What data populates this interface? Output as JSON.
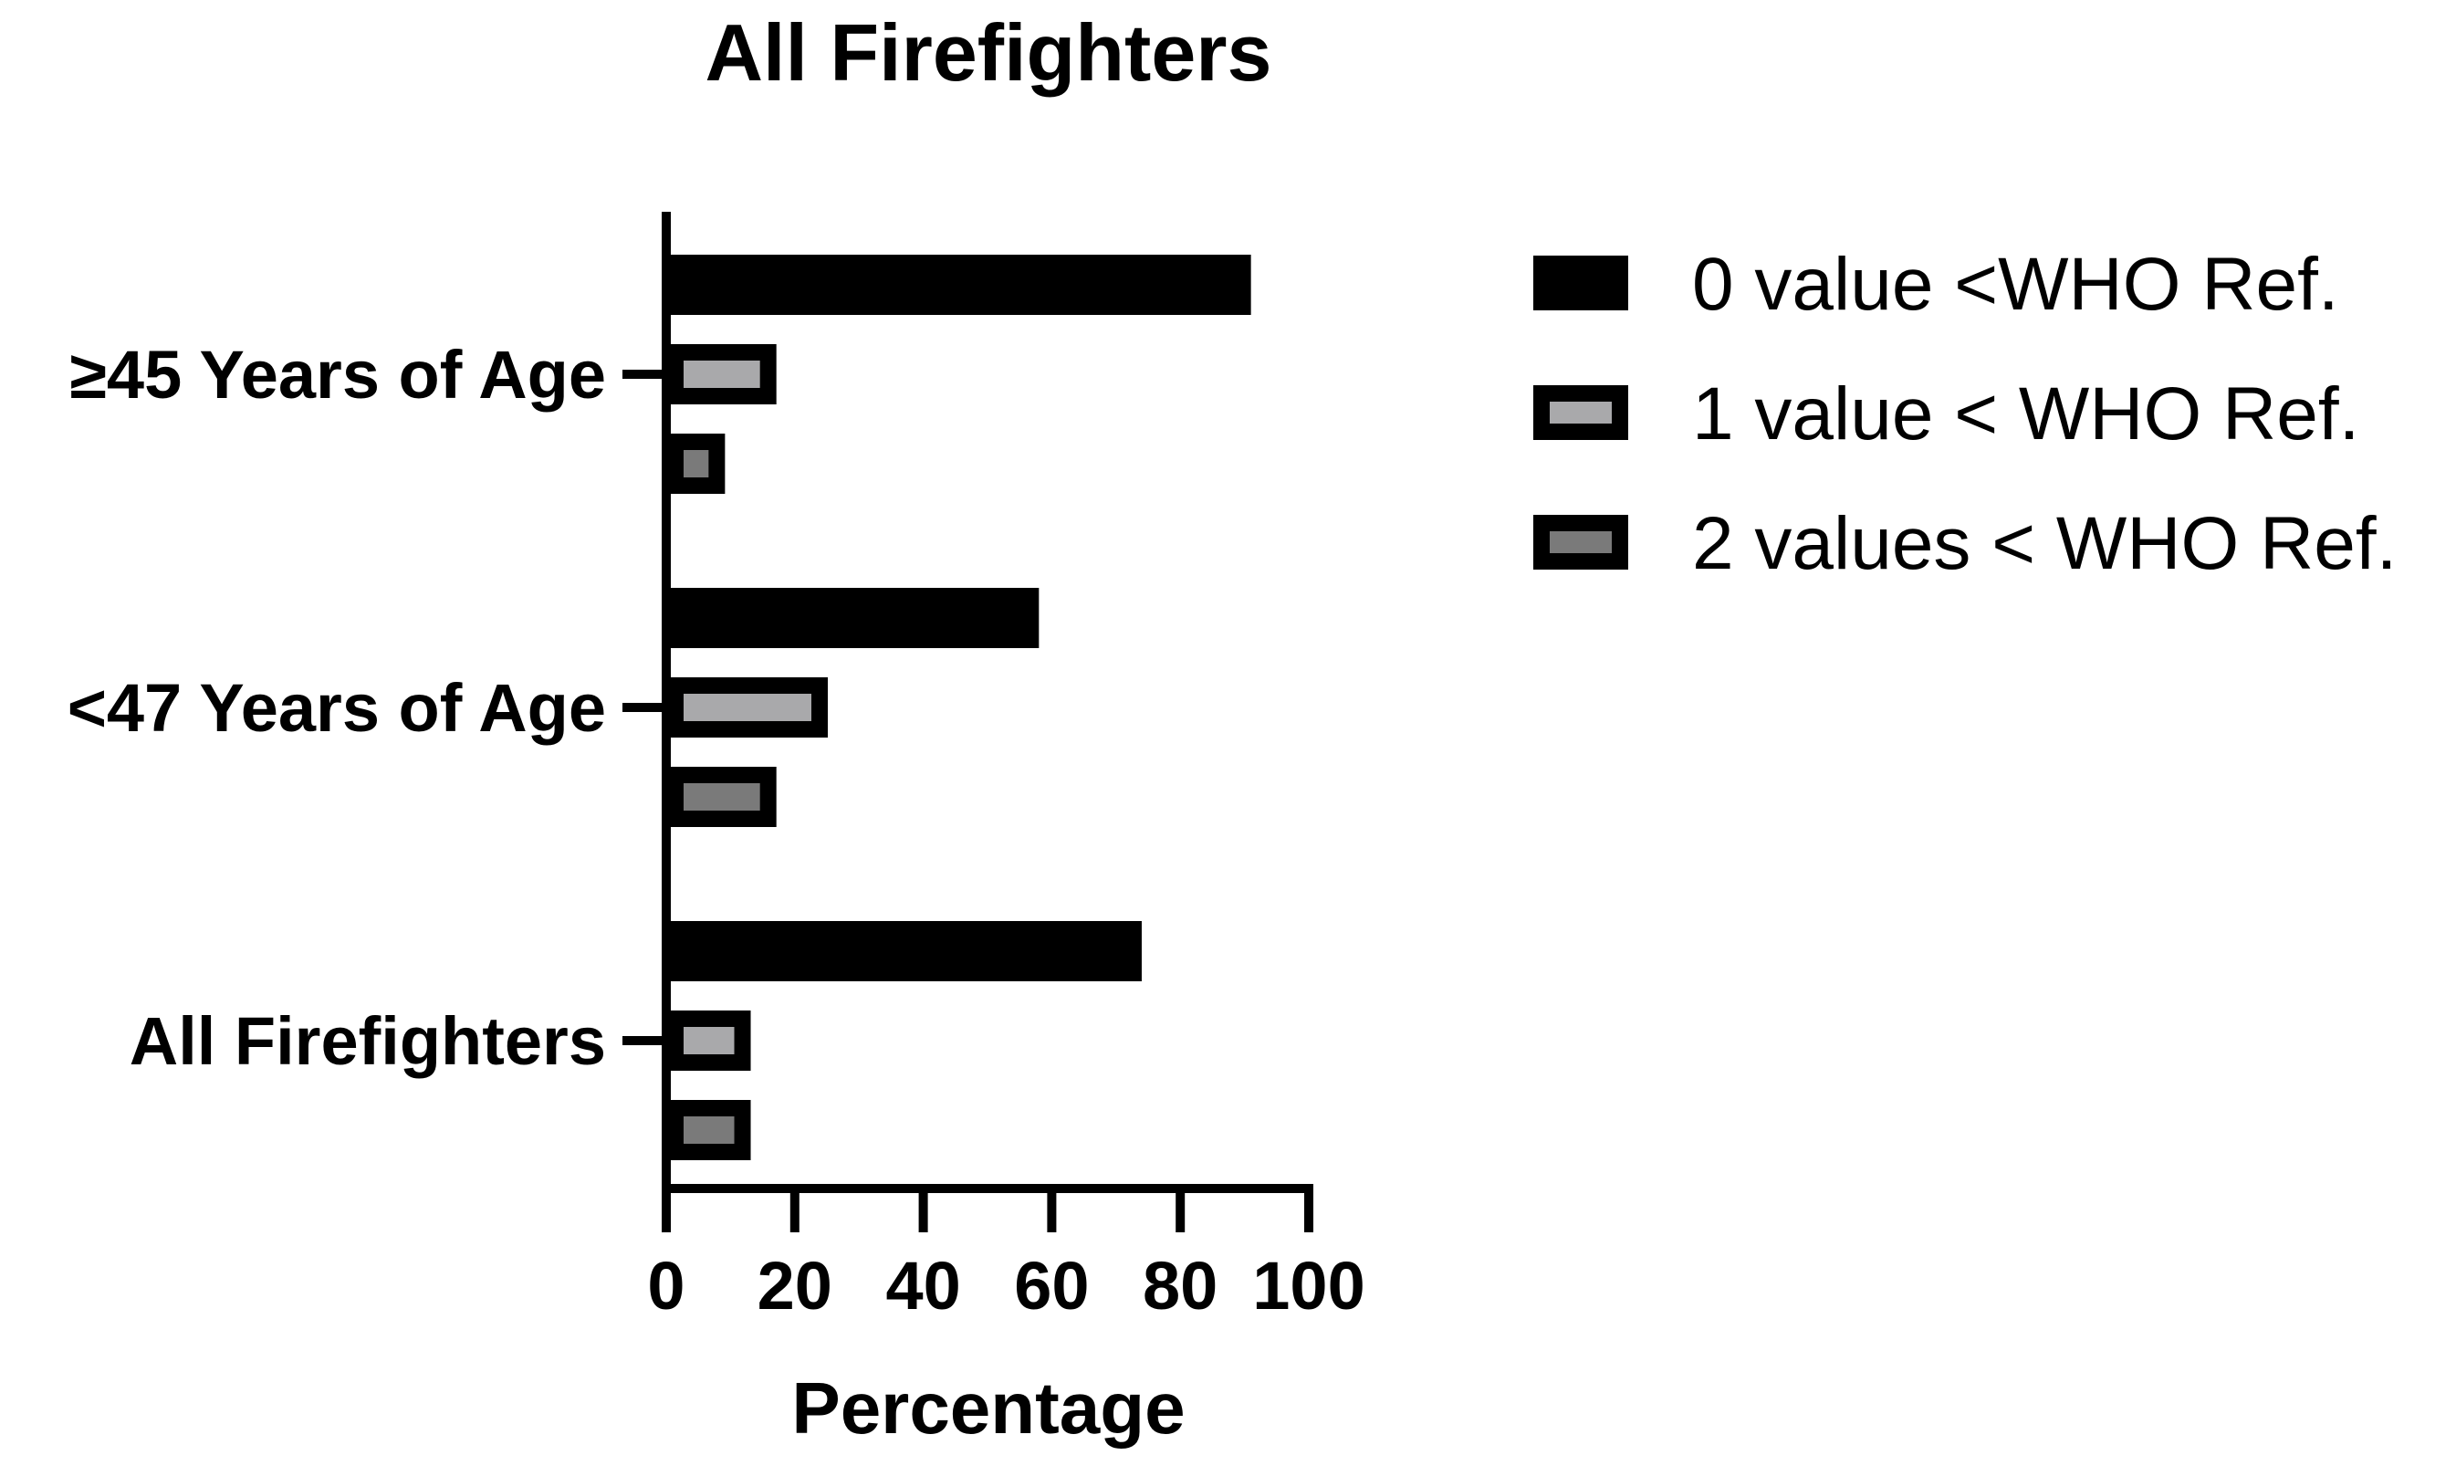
{
  "chart_data": {
    "type": "bar",
    "orientation": "horizontal",
    "title": "All Firefighters",
    "xlabel": "Percentage",
    "ylabel": "",
    "xlim": [
      0,
      100
    ],
    "x_ticks": [
      "0",
      "20",
      "40",
      "60",
      "80",
      "100"
    ],
    "categories": [
      "≥45 Years of Age",
      "<47 Years of Age",
      "All Firefighters"
    ],
    "series": [
      {
        "name": "0 value <WHO Ref.",
        "values": [
          91,
          58,
          74
        ],
        "color": "#000000"
      },
      {
        "name": "1 value < WHO Ref.",
        "values": [
          17,
          25,
          13
        ],
        "color": "#a9a9ab"
      },
      {
        "name": "2 values < WHO Ref.",
        "values": [
          9,
          17,
          13
        ],
        "color": "#7a7a7a"
      }
    ],
    "legend_position": "top-right",
    "grid": false
  }
}
